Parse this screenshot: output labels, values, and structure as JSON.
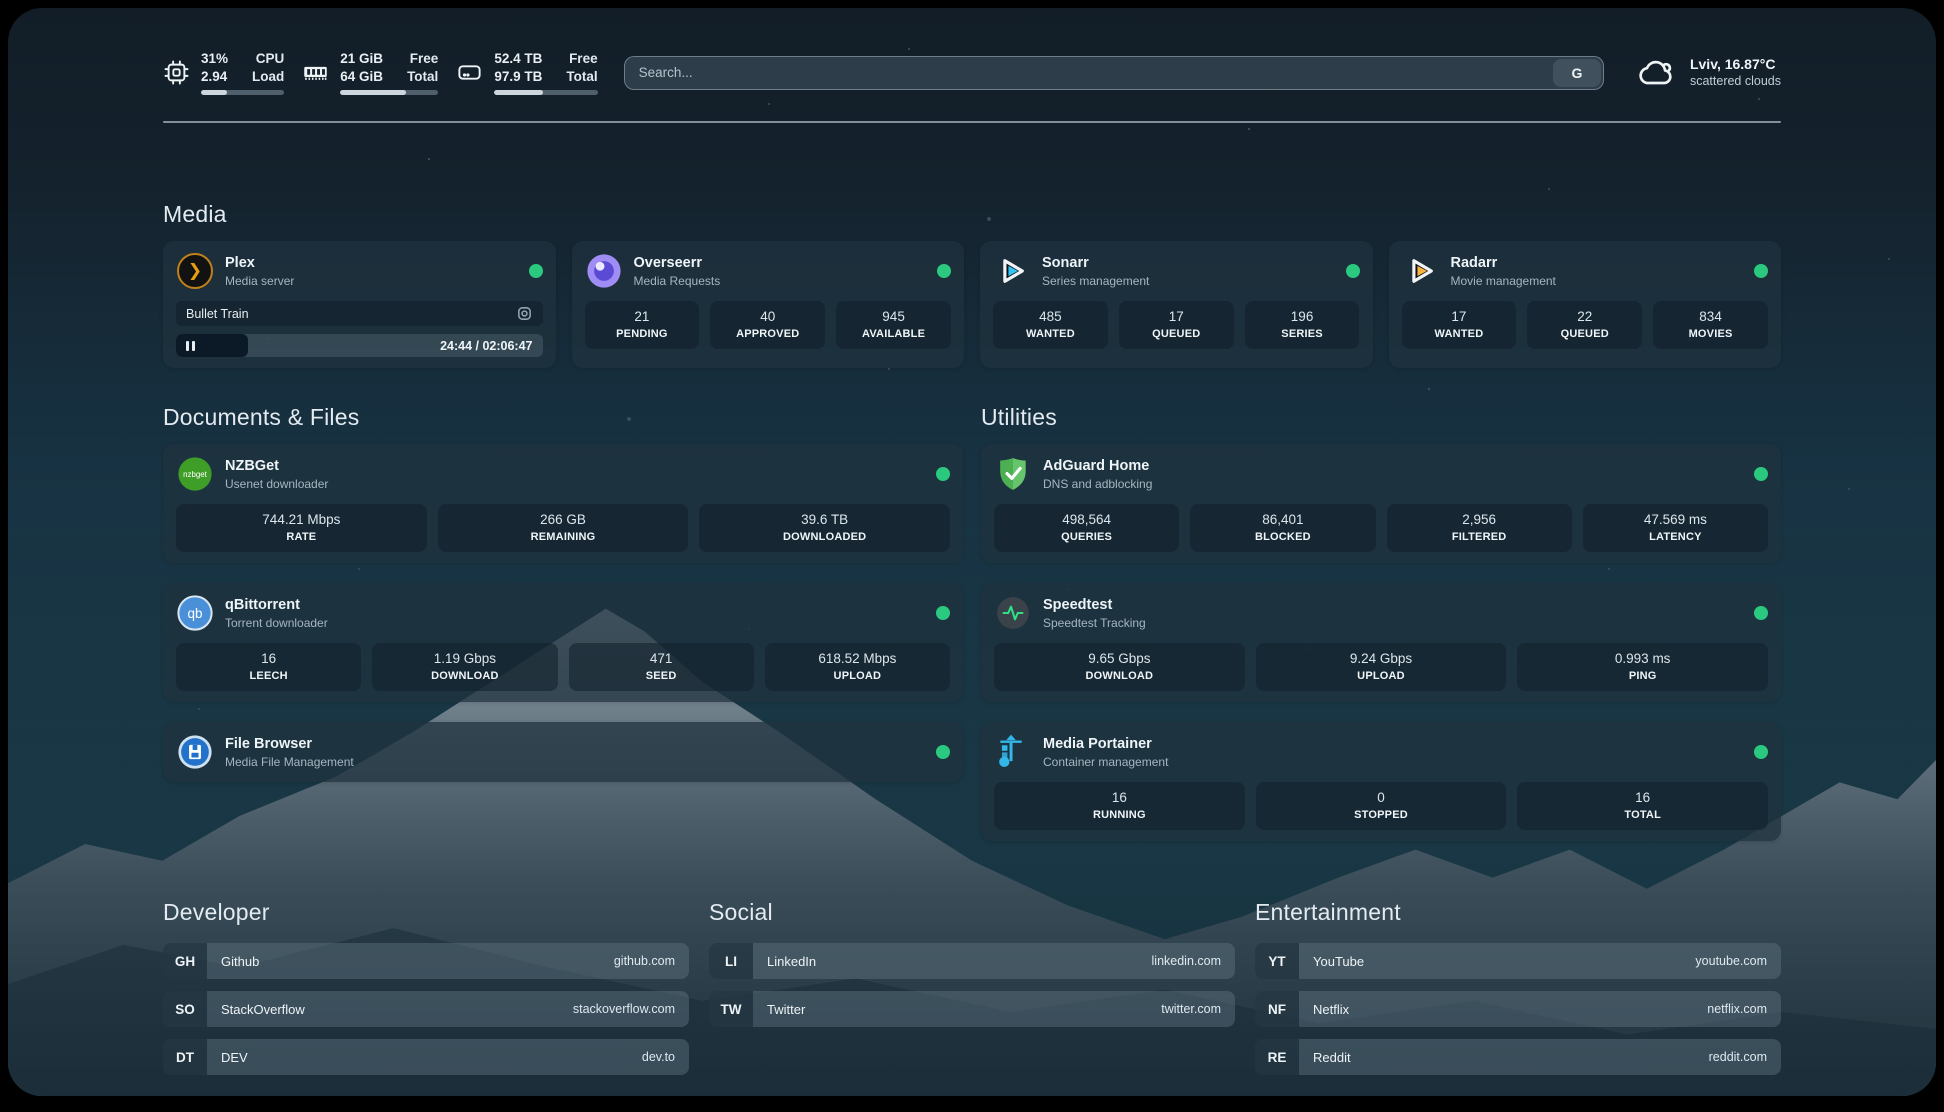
{
  "colors": {
    "status_green": "#2bc97f",
    "plex_amber": "#e5a00d",
    "sonarr_cyan": "#35c5f4",
    "radarr_amber": "#f9b53f",
    "nzbget_green": "#3f9e28",
    "qbittorrent_blue": "#4a90d9",
    "filebrowser_blue": "#2272cc",
    "adguard_green": "#57b85c",
    "speedtest_green": "#2fe087",
    "portainer_blue": "#33b6e8",
    "overseerr_purple": "#9f8df5"
  },
  "top_bar": {
    "resources": [
      {
        "icon": "cpu-icon",
        "rows": [
          {
            "value": "31%",
            "label": "CPU"
          },
          {
            "value": "2.94",
            "label": "Load"
          }
        ],
        "progress_pct": 31
      },
      {
        "icon": "memory-icon",
        "rows": [
          {
            "value": "21 GiB",
            "label": "Free"
          },
          {
            "value": "64 GiB",
            "label": "Total"
          }
        ],
        "progress_pct": 67
      },
      {
        "icon": "disk-icon",
        "rows": [
          {
            "value": "52.4 TB",
            "label": "Free"
          },
          {
            "value": "97.9 TB",
            "label": "Total"
          }
        ],
        "progress_pct": 47
      }
    ],
    "search": {
      "placeholder": "Search...",
      "provider_button": "G"
    },
    "weather": {
      "icon": "cloud-icon",
      "location": "Lviv, 16.87°C",
      "condition": "scattered clouds"
    }
  },
  "sections": {
    "media": {
      "title": "Media",
      "cards": [
        {
          "icon": "plex-icon",
          "name": "Plex",
          "desc": "Media server",
          "status": "online",
          "now_playing": {
            "title": "Bullet Train",
            "time": "24:44 / 02:06:47",
            "progress_pct": 19.6
          }
        },
        {
          "icon": "overseerr-icon",
          "name": "Overseerr",
          "desc": "Media Requests",
          "status": "online",
          "stats": [
            {
              "value": "21",
              "label": "PENDING"
            },
            {
              "value": "40",
              "label": "APPROVED"
            },
            {
              "value": "945",
              "label": "AVAILABLE"
            }
          ]
        },
        {
          "icon": "sonarr-icon",
          "name": "Sonarr",
          "desc": "Series management",
          "status": "online",
          "stats": [
            {
              "value": "485",
              "label": "WANTED"
            },
            {
              "value": "17",
              "label": "QUEUED"
            },
            {
              "value": "196",
              "label": "SERIES"
            }
          ]
        },
        {
          "icon": "radarr-icon",
          "name": "Radarr",
          "desc": "Movie management",
          "status": "online",
          "stats": [
            {
              "value": "17",
              "label": "WANTED"
            },
            {
              "value": "22",
              "label": "QUEUED"
            },
            {
              "value": "834",
              "label": "MOVIES"
            }
          ]
        }
      ]
    },
    "documents": {
      "title": "Documents & Files",
      "cards": [
        {
          "icon": "nzbget-icon",
          "name": "NZBGet",
          "desc": "Usenet downloader",
          "status": "online",
          "stats": [
            {
              "value": "744.21 Mbps",
              "label": "RATE"
            },
            {
              "value": "266 GB",
              "label": "REMAINING"
            },
            {
              "value": "39.6 TB",
              "label": "DOWNLOADED"
            }
          ]
        },
        {
          "icon": "qbittorrent-icon",
          "name": "qBittorrent",
          "desc": "Torrent downloader",
          "status": "online",
          "stats": [
            {
              "value": "16",
              "label": "LEECH"
            },
            {
              "value": "1.19 Gbps",
              "label": "DOWNLOAD"
            },
            {
              "value": "471",
              "label": "SEED"
            },
            {
              "value": "618.52 Mbps",
              "label": "UPLOAD"
            }
          ]
        },
        {
          "icon": "filebrowser-icon",
          "name": "File Browser",
          "desc": "Media File Management",
          "status": "online"
        }
      ]
    },
    "utilities": {
      "title": "Utilities",
      "cards": [
        {
          "icon": "adguard-icon",
          "name": "AdGuard Home",
          "desc": "DNS and adblocking",
          "status": "online",
          "stats": [
            {
              "value": "498,564",
              "label": "QUERIES"
            },
            {
              "value": "86,401",
              "label": "BLOCKED"
            },
            {
              "value": "2,956",
              "label": "FILTERED"
            },
            {
              "value": "47.569 ms",
              "label": "LATENCY"
            }
          ]
        },
        {
          "icon": "speedtest-icon",
          "name": "Speedtest",
          "desc": "Speedtest Tracking",
          "status": "online",
          "stats": [
            {
              "value": "9.65 Gbps",
              "label": "DOWNLOAD"
            },
            {
              "value": "9.24 Gbps",
              "label": "UPLOAD"
            },
            {
              "value": "0.993 ms",
              "label": "PING"
            }
          ]
        },
        {
          "icon": "portainer-icon",
          "name": "Media Portainer",
          "desc": "Container management",
          "status": "online",
          "stats": [
            {
              "value": "16",
              "label": "RUNNING"
            },
            {
              "value": "0",
              "label": "STOPPED"
            },
            {
              "value": "16",
              "label": "TOTAL"
            }
          ]
        }
      ]
    }
  },
  "bookmarks": {
    "developer": {
      "title": "Developer",
      "items": [
        {
          "abbr": "GH",
          "name": "Github",
          "url": "github.com"
        },
        {
          "abbr": "SO",
          "name": "StackOverflow",
          "url": "stackoverflow.com"
        },
        {
          "abbr": "DT",
          "name": "DEV",
          "url": "dev.to"
        }
      ]
    },
    "social": {
      "title": "Social",
      "items": [
        {
          "abbr": "LI",
          "name": "LinkedIn",
          "url": "linkedin.com"
        },
        {
          "abbr": "TW",
          "name": "Twitter",
          "url": "twitter.com"
        }
      ]
    },
    "entertainment": {
      "title": "Entertainment",
      "items": [
        {
          "abbr": "YT",
          "name": "YouTube",
          "url": "youtube.com"
        },
        {
          "abbr": "NF",
          "name": "Netflix",
          "url": "netflix.com"
        },
        {
          "abbr": "RE",
          "name": "Reddit",
          "url": "reddit.com"
        }
      ]
    }
  }
}
